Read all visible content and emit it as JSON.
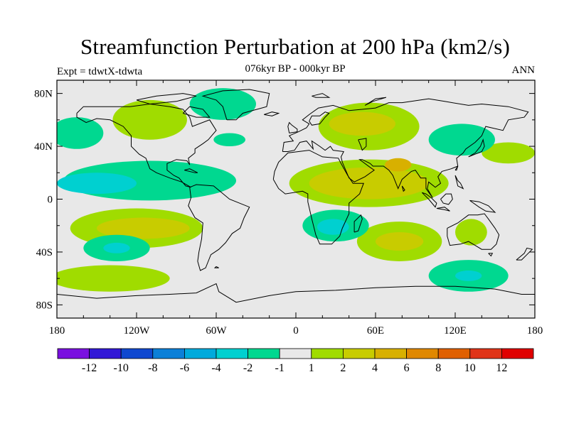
{
  "chart_data": {
    "type": "heatmap",
    "title": "Streamfunction Perturbation at 200 hPa (km2/s)",
    "subtitle": "076kyr BP - 000kyr BP",
    "left_label": "Expt = tdwtX-tdwta",
    "right_label": "ANN",
    "projection": "cylindrical equidistant",
    "xlim": [
      -180,
      180
    ],
    "ylim": [
      -90,
      90
    ],
    "x_ticks": [
      {
        "value": -180,
        "label": "180"
      },
      {
        "value": -120,
        "label": "120W"
      },
      {
        "value": -60,
        "label": "60W"
      },
      {
        "value": 0,
        "label": "0"
      },
      {
        "value": 60,
        "label": "60E"
      },
      {
        "value": 120,
        "label": "120E"
      },
      {
        "value": 180,
        "label": "180"
      }
    ],
    "y_ticks": [
      {
        "value": 80,
        "label": "80N"
      },
      {
        "value": 40,
        "label": "40N"
      },
      {
        "value": 0,
        "label": "0"
      },
      {
        "value": -40,
        "label": "40S"
      },
      {
        "value": -80,
        "label": "80S"
      }
    ],
    "colorbar": {
      "labels": [
        "-12",
        "-10",
        "-8",
        "-6",
        "-4",
        "-2",
        "-1",
        "1",
        "2",
        "4",
        "6",
        "8",
        "10",
        "12"
      ],
      "colors": [
        "#7a10e0",
        "#3218d6",
        "#1048d0",
        "#0c80d8",
        "#00aadc",
        "#00d0d0",
        "#00d890",
        "#e8e8e8",
        "#a0dc00",
        "#c8cc00",
        "#d8b000",
        "#e08800",
        "#e06000",
        "#e03418",
        "#e00000"
      ]
    },
    "regions": [
      {
        "level": 1,
        "lon": 55,
        "lat": 55,
        "rlon": 38,
        "rlat": 18
      },
      {
        "level": 2,
        "lon": 50,
        "lat": 57,
        "rlon": 25,
        "rlat": 9
      },
      {
        "level": 1,
        "lon": 55,
        "lat": 12,
        "rlon": 60,
        "rlat": 18
      },
      {
        "level": 2,
        "lon": 55,
        "lat": 12,
        "rlon": 45,
        "rlat": 12
      },
      {
        "level": 3,
        "lon": 77,
        "lat": 26,
        "rlon": 10,
        "rlat": 5
      },
      {
        "level": 1,
        "lon": -120,
        "lat": -22,
        "rlon": 50,
        "rlat": 15
      },
      {
        "level": 2,
        "lon": -115,
        "lat": -22,
        "rlon": 35,
        "rlat": 8
      },
      {
        "level": 1,
        "lon": 78,
        "lat": -32,
        "rlon": 32,
        "rlat": 15
      },
      {
        "level": 2,
        "lon": 78,
        "lat": -32,
        "rlon": 18,
        "rlat": 7
      },
      {
        "level": 1,
        "lon": -140,
        "lat": -60,
        "rlon": 45,
        "rlat": 10
      },
      {
        "level": 1,
        "lon": -110,
        "lat": 60,
        "rlon": 28,
        "rlat": 15
      },
      {
        "level": 1,
        "lon": 160,
        "lat": 35,
        "rlon": 20,
        "rlat": 8
      },
      {
        "level": 1,
        "lon": 132,
        "lat": -25,
        "rlon": 12,
        "rlat": 10
      },
      {
        "level": -1,
        "lon": -110,
        "lat": 14,
        "rlon": 65,
        "rlat": 15
      },
      {
        "level": -2,
        "lon": -150,
        "lat": 12,
        "rlon": 30,
        "rlat": 8
      },
      {
        "level": -1,
        "lon": -55,
        "lat": 72,
        "rlon": 25,
        "rlat": 12
      },
      {
        "level": -1,
        "lon": 30,
        "lat": -20,
        "rlon": 25,
        "rlat": 12
      },
      {
        "level": -2,
        "lon": 28,
        "lat": -21,
        "rlon": 12,
        "rlat": 6
      },
      {
        "level": -1,
        "lon": 125,
        "lat": 45,
        "rlon": 25,
        "rlat": 12
      },
      {
        "level": -1,
        "lon": 130,
        "lat": -58,
        "rlon": 30,
        "rlat": 12
      },
      {
        "level": -2,
        "lon": 130,
        "lat": -58,
        "rlon": 10,
        "rlat": 4
      },
      {
        "level": -1,
        "lon": -135,
        "lat": -37,
        "rlon": 25,
        "rlat": 10
      },
      {
        "level": -2,
        "lon": -135,
        "lat": -37,
        "rlon": 10,
        "rlat": 4
      },
      {
        "level": -1,
        "lon": -165,
        "lat": 50,
        "rlon": 20,
        "rlat": 12
      },
      {
        "level": -1,
        "lon": -50,
        "lat": 45,
        "rlon": 12,
        "rlat": 5
      }
    ]
  }
}
